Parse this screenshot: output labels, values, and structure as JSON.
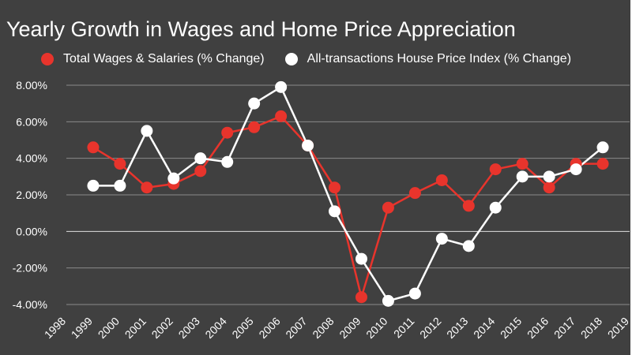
{
  "chart_data": {
    "type": "line",
    "title": "Yearly Growth in Wages and Home Price Appreciation",
    "xlabel": "",
    "ylabel": "",
    "x": [
      1999,
      2000,
      2001,
      2002,
      2003,
      2004,
      2005,
      2006,
      2007,
      2008,
      2009,
      2010,
      2011,
      2012,
      2013,
      2014,
      2015,
      2016,
      2017,
      2018
    ],
    "x_ticks": [
      "1998",
      "1999",
      "2000",
      "2001",
      "2002",
      "2003",
      "2004",
      "2005",
      "2006",
      "2007",
      "2008",
      "2009",
      "2010",
      "2011",
      "2012",
      "2013",
      "2014",
      "2015",
      "2016",
      "2017",
      "2018",
      "2019"
    ],
    "xlim": [
      1998,
      2019
    ],
    "ylim": [
      -4,
      8
    ],
    "y_ticks": [
      {
        "value": 8,
        "label": "8.00%"
      },
      {
        "value": 6,
        "label": "6.00%"
      },
      {
        "value": 4,
        "label": "4.00%"
      },
      {
        "value": 2,
        "label": "2.00%"
      },
      {
        "value": 0,
        "label": "0.00%"
      },
      {
        "value": -2,
        "label": "-2.00%"
      },
      {
        "value": -4,
        "label": "-4.00%"
      }
    ],
    "grid": true,
    "legend_position": "top",
    "background_color": "#404040",
    "series": [
      {
        "name": "Total Wages & Salaries (% Change)",
        "color": "#e8342c",
        "values": [
          4.6,
          3.7,
          2.4,
          2.6,
          3.3,
          5.4,
          5.7,
          6.3,
          4.7,
          2.4,
          -3.6,
          1.3,
          2.1,
          2.8,
          1.4,
          3.4,
          3.7,
          2.4,
          3.7,
          3.7
        ]
      },
      {
        "name": "All-transactions House Price Index (% Change)",
        "color": "#ffffff",
        "values": [
          2.5,
          2.5,
          5.5,
          2.9,
          4.0,
          3.8,
          7.0,
          7.9,
          4.7,
          1.1,
          -1.5,
          -3.8,
          -3.4,
          -0.4,
          -0.8,
          1.3,
          3.0,
          3.0,
          3.4,
          4.6
        ]
      }
    ]
  }
}
